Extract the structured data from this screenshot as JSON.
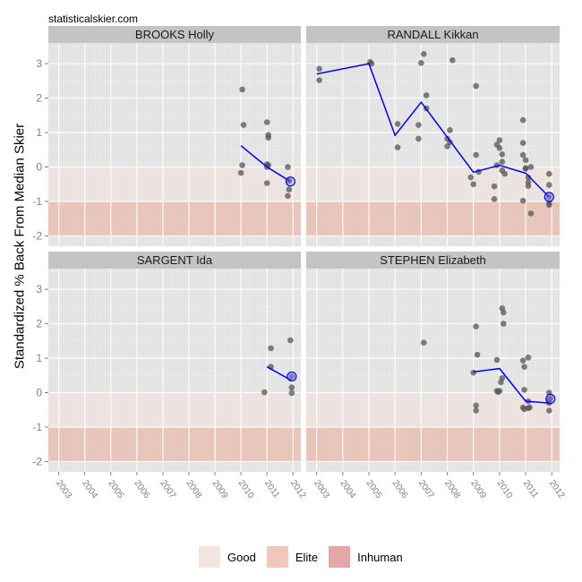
{
  "site_label": "statisticalskier.com",
  "chart_data": {
    "type": "scatter",
    "title": "",
    "xlabel": "",
    "ylabel": "Standardized % Back From Median Skier",
    "xlim": [
      2002.6,
      2012.3
    ],
    "ylim": [
      -2.3,
      3.6
    ],
    "x_ticks": [
      "2003",
      "2004",
      "2005",
      "2006",
      "2007",
      "2008",
      "2009",
      "2010",
      "2011",
      "2012"
    ],
    "y_ticks": [
      "3",
      "2",
      "1",
      "0",
      "-1",
      "-2"
    ],
    "y_tick_values": [
      3,
      2,
      1,
      0,
      -1,
      -2
    ],
    "grid": true,
    "bands": [
      {
        "name": "Good",
        "from": -1,
        "to": 0,
        "color": "#ede3df"
      },
      {
        "name": "Elite",
        "from": -2,
        "to": -1,
        "color": "#e9bfb4"
      }
    ],
    "legend": {
      "placement": "bottom",
      "items": [
        {
          "label": "Good",
          "color": "#f3e6e1"
        },
        {
          "label": "Elite",
          "color": "#f2c7bc"
        },
        {
          "label": "Inhuman",
          "color": "#e6a6a8"
        }
      ]
    },
    "line_color": "#0000ff",
    "point_color": "#555555",
    "panels": [
      {
        "name": "BROOKS Holly",
        "points": [
          [
            2010.05,
            2.25
          ],
          [
            2010.1,
            1.22
          ],
          [
            2010.05,
            0.05
          ],
          [
            2010.0,
            -0.17
          ],
          [
            2011.0,
            1.3
          ],
          [
            2011.05,
            0.93
          ],
          [
            2011.05,
            0.85
          ],
          [
            2011.0,
            0.08
          ],
          [
            2011.05,
            0.05
          ],
          [
            2011.0,
            0.0
          ],
          [
            2011.0,
            -0.47
          ],
          [
            2011.8,
            0.0
          ],
          [
            2011.85,
            -0.4
          ],
          [
            2011.85,
            -0.65
          ],
          [
            2011.8,
            -0.84
          ]
        ],
        "line": [
          [
            2010.0,
            0.62
          ],
          [
            2011.0,
            0.0
          ],
          [
            2011.9,
            -0.42
          ]
        ],
        "current": [
          2011.9,
          -0.42
        ]
      },
      {
        "name": "RANDALL Kikkan",
        "points": [
          [
            2003.1,
            2.85
          ],
          [
            2003.1,
            2.52
          ],
          [
            2005.05,
            3.05
          ],
          [
            2005.1,
            3.0
          ],
          [
            2006.1,
            1.25
          ],
          [
            2006.1,
            0.57
          ],
          [
            2006.9,
            1.22
          ],
          [
            2006.9,
            0.82
          ],
          [
            2007.0,
            3.02
          ],
          [
            2007.1,
            3.28
          ],
          [
            2007.2,
            2.08
          ],
          [
            2007.2,
            1.7
          ],
          [
            2008.0,
            0.6
          ],
          [
            2008.0,
            0.82
          ],
          [
            2008.1,
            0.72
          ],
          [
            2008.1,
            1.07
          ],
          [
            2008.2,
            3.1
          ],
          [
            2008.9,
            -0.3
          ],
          [
            2009.0,
            -0.5
          ],
          [
            2009.1,
            2.35
          ],
          [
            2009.1,
            0.35
          ],
          [
            2009.2,
            -0.14
          ],
          [
            2009.8,
            -0.56
          ],
          [
            2009.8,
            -0.93
          ],
          [
            2009.9,
            0.65
          ],
          [
            2009.9,
            0.05
          ],
          [
            2010.0,
            0.78
          ],
          [
            2010.0,
            0.55
          ],
          [
            2010.1,
            0.37
          ],
          [
            2010.1,
            0.15
          ],
          [
            2010.1,
            -0.1
          ],
          [
            2010.2,
            -0.2
          ],
          [
            2010.9,
            1.36
          ],
          [
            2010.9,
            0.7
          ],
          [
            2010.9,
            0.35
          ],
          [
            2010.9,
            -0.98
          ],
          [
            2011.0,
            0.2
          ],
          [
            2011.0,
            -0.03
          ],
          [
            2011.0,
            -0.05
          ],
          [
            2011.1,
            -0.3
          ],
          [
            2011.1,
            -0.44
          ],
          [
            2011.1,
            -0.55
          ],
          [
            2011.2,
            -1.35
          ],
          [
            2011.2,
            0.0
          ],
          [
            2011.9,
            -0.2
          ],
          [
            2011.9,
            -0.52
          ],
          [
            2011.9,
            -0.87
          ],
          [
            2011.9,
            -1.05
          ],
          [
            2011.9,
            -1.1
          ]
        ],
        "line": [
          [
            2003.0,
            2.7
          ],
          [
            2005.0,
            3.0
          ],
          [
            2006.0,
            0.92
          ],
          [
            2007.0,
            1.88
          ],
          [
            2009.0,
            -0.15
          ],
          [
            2010.0,
            0.05
          ],
          [
            2011.0,
            -0.18
          ],
          [
            2011.9,
            -0.87
          ]
        ],
        "current": [
          2011.9,
          -0.87
        ]
      },
      {
        "name": "SARGENT Ida",
        "points": [
          [
            2010.9,
            0.01
          ],
          [
            2011.15,
            1.29
          ],
          [
            2011.15,
            0.75
          ],
          [
            2011.9,
            1.52
          ],
          [
            2011.95,
            0.47
          ],
          [
            2011.95,
            0.15
          ],
          [
            2011.95,
            -0.01
          ]
        ],
        "line": [
          [
            2011.0,
            0.75
          ],
          [
            2011.95,
            0.35
          ]
        ],
        "current": [
          2011.95,
          0.47
        ]
      },
      {
        "name": "STEPHEN Elizabeth",
        "points": [
          [
            2007.1,
            1.45
          ],
          [
            2009.0,
            0.58
          ],
          [
            2009.1,
            1.92
          ],
          [
            2009.15,
            1.1
          ],
          [
            2009.1,
            -0.37
          ],
          [
            2009.1,
            -0.52
          ],
          [
            2009.9,
            0.05
          ],
          [
            2009.95,
            0.02
          ],
          [
            2009.9,
            0.95
          ],
          [
            2010.1,
            2.45
          ],
          [
            2010.15,
            2.33
          ],
          [
            2010.15,
            2.0
          ],
          [
            2010.1,
            0.42
          ],
          [
            2010.05,
            0.3
          ],
          [
            2010.0,
            0.05
          ],
          [
            2010.9,
            0.93
          ],
          [
            2010.95,
            0.75
          ],
          [
            2011.1,
            1.02
          ],
          [
            2010.95,
            0.08
          ],
          [
            2010.9,
            -0.43
          ],
          [
            2010.95,
            -0.48
          ],
          [
            2011.1,
            -0.25
          ],
          [
            2011.1,
            -0.45
          ],
          [
            2011.15,
            -0.43
          ],
          [
            2011.9,
            0.0
          ],
          [
            2011.9,
            -0.2
          ],
          [
            2011.9,
            -0.3
          ],
          [
            2011.9,
            -0.52
          ],
          [
            2011.95,
            -0.17
          ]
        ],
        "line": [
          [
            2009.0,
            0.6
          ],
          [
            2010.0,
            0.7
          ],
          [
            2011.0,
            -0.25
          ],
          [
            2011.9,
            -0.3
          ]
        ],
        "current": [
          2011.95,
          -0.18
        ]
      }
    ]
  }
}
